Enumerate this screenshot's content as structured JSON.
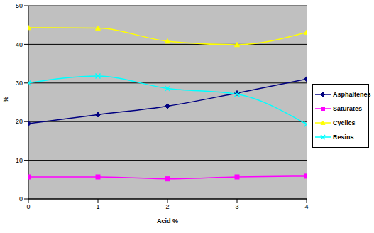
{
  "chart_data": {
    "type": "line",
    "x_label": "Acid %",
    "y_label": "%",
    "x": [
      0,
      1,
      2,
      3,
      4
    ],
    "xlim": [
      0,
      4
    ],
    "xticks": [
      0,
      1,
      2,
      3,
      4
    ],
    "ylim": [
      0,
      50
    ],
    "yticks": [
      0,
      10,
      20,
      30,
      40,
      50
    ],
    "grid": true,
    "legend": "right",
    "series": [
      {
        "name": "Asphaltenes",
        "color": "#000080",
        "marker": "diamond",
        "values": [
          19.5,
          21.8,
          24.0,
          27.4,
          31.0
        ]
      },
      {
        "name": "Saturates",
        "color": "#ff00ff",
        "marker": "square",
        "values": [
          5.7,
          5.7,
          5.2,
          5.7,
          5.9
        ]
      },
      {
        "name": "Cyclics",
        "color": "#ffff00",
        "marker": "triangle",
        "values": [
          44.3,
          44.2,
          40.8,
          39.9,
          43.1
        ]
      },
      {
        "name": "Resins",
        "color": "#00ffff",
        "marker": "x",
        "values": [
          30.0,
          31.8,
          28.6,
          27.1,
          19.3
        ]
      }
    ]
  }
}
